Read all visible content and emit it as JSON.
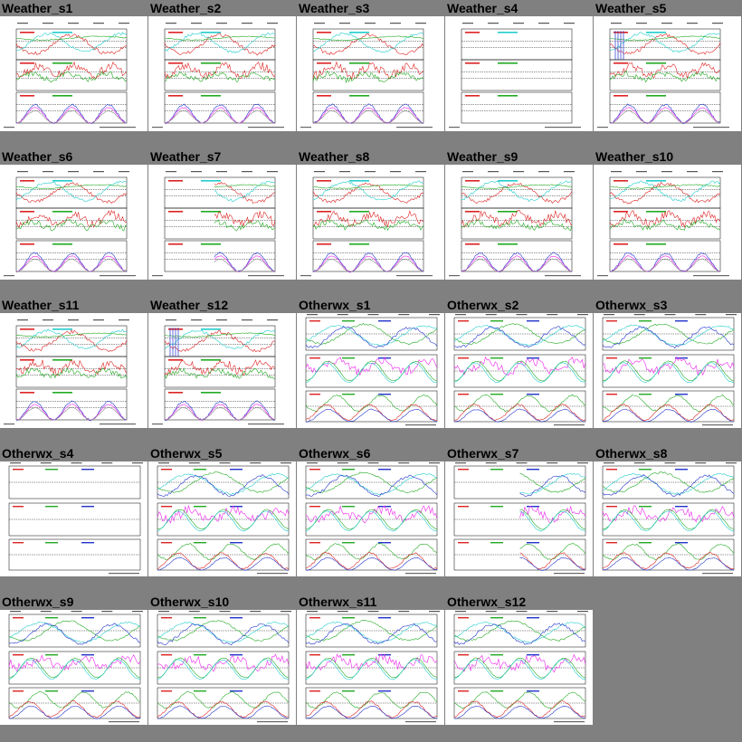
{
  "thumbnails": [
    {
      "title": "Weather_s1",
      "kind": "weather",
      "variant": "full"
    },
    {
      "title": "Weather_s2",
      "kind": "weather",
      "variant": "full"
    },
    {
      "title": "Weather_s3",
      "kind": "weather",
      "variant": "full"
    },
    {
      "title": "Weather_s4",
      "kind": "weather",
      "variant": "empty"
    },
    {
      "title": "Weather_s5",
      "kind": "weather",
      "variant": "spikes"
    },
    {
      "title": "Weather_s6",
      "kind": "weather",
      "variant": "full"
    },
    {
      "title": "Weather_s7",
      "kind": "weather",
      "variant": "partial"
    },
    {
      "title": "Weather_s8",
      "kind": "weather",
      "variant": "full"
    },
    {
      "title": "Weather_s9",
      "kind": "weather",
      "variant": "full"
    },
    {
      "title": "Weather_s10",
      "kind": "weather",
      "variant": "full"
    },
    {
      "title": "Weather_s11",
      "kind": "weather",
      "variant": "full"
    },
    {
      "title": "Weather_s12",
      "kind": "weather",
      "variant": "spikes"
    },
    {
      "title": "Otherwx_s1",
      "kind": "otherwx",
      "variant": "full"
    },
    {
      "title": "Otherwx_s2",
      "kind": "otherwx",
      "variant": "full"
    },
    {
      "title": "Otherwx_s3",
      "kind": "otherwx",
      "variant": "full"
    },
    {
      "title": "Otherwx_s4",
      "kind": "otherwx",
      "variant": "empty"
    },
    {
      "title": "Otherwx_s5",
      "kind": "otherwx",
      "variant": "full"
    },
    {
      "title": "Otherwx_s6",
      "kind": "otherwx",
      "variant": "full"
    },
    {
      "title": "Otherwx_s7",
      "kind": "otherwx",
      "variant": "partial"
    },
    {
      "title": "Otherwx_s8",
      "kind": "otherwx",
      "variant": "full"
    },
    {
      "title": "Otherwx_s9",
      "kind": "otherwx",
      "variant": "full"
    },
    {
      "title": "Otherwx_s10",
      "kind": "otherwx",
      "variant": "full"
    },
    {
      "title": "Otherwx_s11",
      "kind": "otherwx",
      "variant": "full"
    },
    {
      "title": "Otherwx_s12",
      "kind": "otherwx",
      "variant": "full"
    }
  ],
  "colors": {
    "page_background": "#808080",
    "thumb_background": "#ffffff",
    "red": "#dd2222",
    "green": "#22aa22",
    "cyan": "#22cccc",
    "blue": "#2233cc",
    "magenta": "#ee22ee",
    "gray": "#888888"
  }
}
